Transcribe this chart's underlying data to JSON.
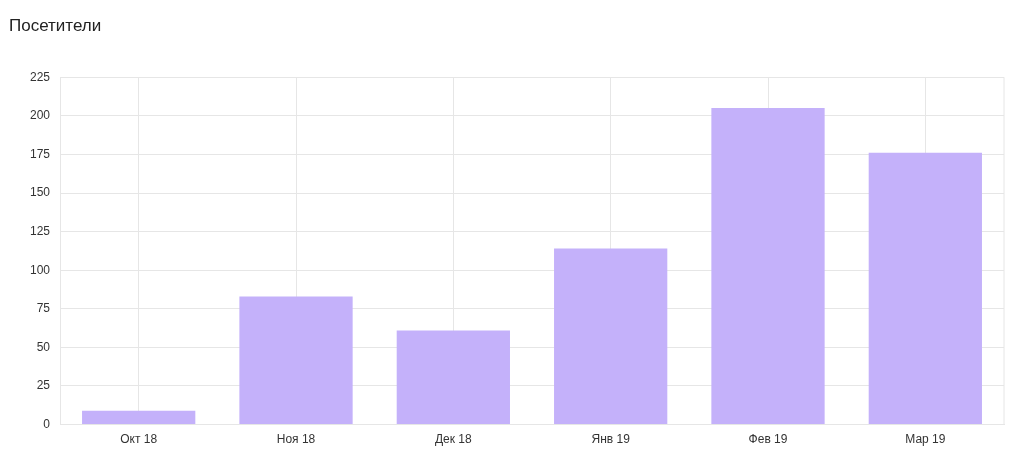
{
  "chart_data": {
    "type": "bar",
    "title": "Посетители",
    "categories": [
      "Окт 18",
      "Ноя 18",
      "Дек 18",
      "Янв 19",
      "Фев 19",
      "Мар 19"
    ],
    "values": [
      9,
      83,
      61,
      114,
      205,
      176
    ],
    "color": "#c4b1fa",
    "ylim": [
      0,
      225
    ],
    "yticks": [
      0,
      25,
      50,
      75,
      100,
      125,
      150,
      175,
      200,
      225
    ],
    "grid": true
  }
}
